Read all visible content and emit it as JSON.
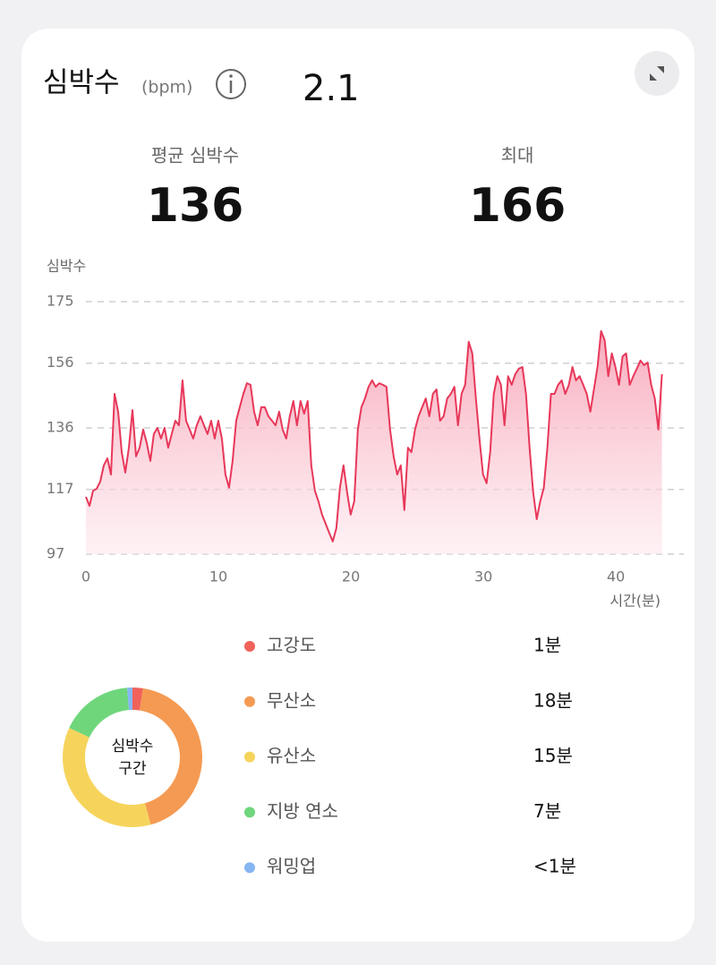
{
  "header": {
    "title": "심박수",
    "unit": "(bpm)",
    "version": "2.1"
  },
  "stats": [
    {
      "label": "평균 심박수",
      "value": 136
    },
    {
      "label": "최대",
      "value": 166
    }
  ],
  "chart_data": {
    "type": "area",
    "y_label": "심박수",
    "x_label": "시간(분)",
    "x": [
      0,
      0.27,
      0.54,
      0.81,
      1.08,
      1.35,
      1.62,
      1.89,
      2.16,
      2.43,
      2.7,
      2.97,
      3.24,
      3.51,
      3.78,
      4.05,
      4.32,
      4.59,
      4.86,
      5.13,
      5.4,
      5.67,
      5.94,
      6.21,
      6.48,
      6.75,
      7.02,
      7.29,
      7.56,
      7.83,
      8.1,
      8.37,
      8.64,
      8.91,
      9.18,
      9.45,
      9.72,
      9.99,
      10.26,
      10.53,
      10.8,
      11.07,
      11.34,
      11.61,
      11.88,
      12.15,
      12.42,
      12.69,
      12.96,
      13.23,
      13.5,
      13.77,
      14.04,
      14.31,
      14.58,
      14.85,
      15.12,
      15.39,
      15.66,
      15.93,
      16.2,
      16.47,
      16.74,
      17.01,
      17.28,
      17.55,
      17.82,
      18.09,
      18.36,
      18.63,
      18.9,
      19.17,
      19.44,
      19.71,
      19.98,
      20.25,
      20.52,
      20.79,
      21.06,
      21.33,
      21.6,
      21.87,
      22.14,
      22.41,
      22.68,
      22.95,
      23.22,
      23.49,
      23.76,
      24.03,
      24.3,
      24.57,
      24.84,
      25.11,
      25.38,
      25.65,
      25.92,
      26.19,
      26.46,
      26.73,
      27,
      27.27,
      27.54,
      27.81,
      28.08,
      28.35,
      28.62,
      28.89,
      29.16,
      29.43,
      29.7,
      29.97,
      30.24,
      30.51,
      30.78,
      31.05,
      31.32,
      31.59,
      31.86,
      32.13,
      32.4,
      32.67,
      32.94,
      33.21,
      33.48,
      33.75,
      34.02,
      34.29,
      34.56,
      34.83,
      35.1,
      35.37,
      35.64,
      35.91,
      36.18,
      36.45,
      36.72,
      36.99,
      37.26,
      37.53,
      37.8,
      38.07,
      38.34,
      38.61,
      38.88,
      39.15,
      39.42,
      39.69,
      39.96,
      40.23,
      40.5,
      40.77,
      41.04,
      41.31,
      41.58,
      41.85,
      42.12,
      42.39,
      42.66,
      42.93,
      43.2,
      43.47
    ],
    "values": [
      114.7,
      111.9,
      116.6,
      117.2,
      119.4,
      124.4,
      126.6,
      121.6,
      146.5,
      141.0,
      128.5,
      122.2,
      129.9,
      141.5,
      127.2,
      129.9,
      135.5,
      131.3,
      125.8,
      134.1,
      136.0,
      132.7,
      136.0,
      129.9,
      134.1,
      138.2,
      136.8,
      150.7,
      138.2,
      135.5,
      132.7,
      136.8,
      139.6,
      136.8,
      134.1,
      138.2,
      132.7,
      138.2,
      132.7,
      121.6,
      117.5,
      125.8,
      138.2,
      142.4,
      146.5,
      149.8,
      149.3,
      141.0,
      136.8,
      142.4,
      142.4,
      139.6,
      138.2,
      136.8,
      141.0,
      135.5,
      132.7,
      139.6,
      144.3,
      136.8,
      144.3,
      140.4,
      144.3,
      124.4,
      116.6,
      113.3,
      109.2,
      106.4,
      103.6,
      100.9,
      105.0,
      117.5,
      124.4,
      116.1,
      109.2,
      113.3,
      135.5,
      142.4,
      145.1,
      148.7,
      150.7,
      148.7,
      149.8,
      149.3,
      148.7,
      135.5,
      127.2,
      121.6,
      124.4,
      110.6,
      129.9,
      128.5,
      135.5,
      139.6,
      142.4,
      145.1,
      139.6,
      146.5,
      147.9,
      138.2,
      139.6,
      145.1,
      146.5,
      148.7,
      136.8,
      146.5,
      149.3,
      162.6,
      159.0,
      145.1,
      132.7,
      121.6,
      118.9,
      128.5,
      146.5,
      152.0,
      149.3,
      136.8,
      152.0,
      149.3,
      152.6,
      154.3,
      154.8,
      146.5,
      129.9,
      116.1,
      107.8,
      113.3,
      117.5,
      129.9,
      146.5,
      146.5,
      149.3,
      150.7,
      146.5,
      149.3,
      154.8,
      150.7,
      152.0,
      149.3,
      146.5,
      141.0,
      147.9,
      154.8,
      165.9,
      163.1,
      152.0,
      159.0,
      154.8,
      149.3,
      158.1,
      159.0,
      149.3,
      152.0,
      154.3,
      156.8,
      155.4,
      156.2,
      149.3,
      145.1,
      135.5,
      152.6
    ],
    "color": "#e8385a",
    "xlim": [
      0,
      43.5
    ],
    "ylim": [
      97,
      175
    ],
    "xticks": [
      0,
      10,
      20,
      30,
      40
    ],
    "yticks": [
      97,
      117,
      136,
      156,
      175
    ],
    "grid": true
  },
  "zones": {
    "center_label": [
      "심박수",
      "구간"
    ],
    "items": [
      {
        "name": "고강도",
        "color": "#f0625a",
        "minutes": 1,
        "label": "1분"
      },
      {
        "name": "무산소",
        "color": "#f59a52",
        "minutes": 18,
        "label": "18분"
      },
      {
        "name": "유산소",
        "color": "#f6d45c",
        "minutes": 15,
        "label": "15분"
      },
      {
        "name": "지방 연소",
        "color": "#6fd67c",
        "minutes": 7,
        "label": "7분"
      },
      {
        "name": "워밍업",
        "color": "#86b6f2",
        "minutes": 0.5,
        "label": "<1분"
      }
    ]
  }
}
